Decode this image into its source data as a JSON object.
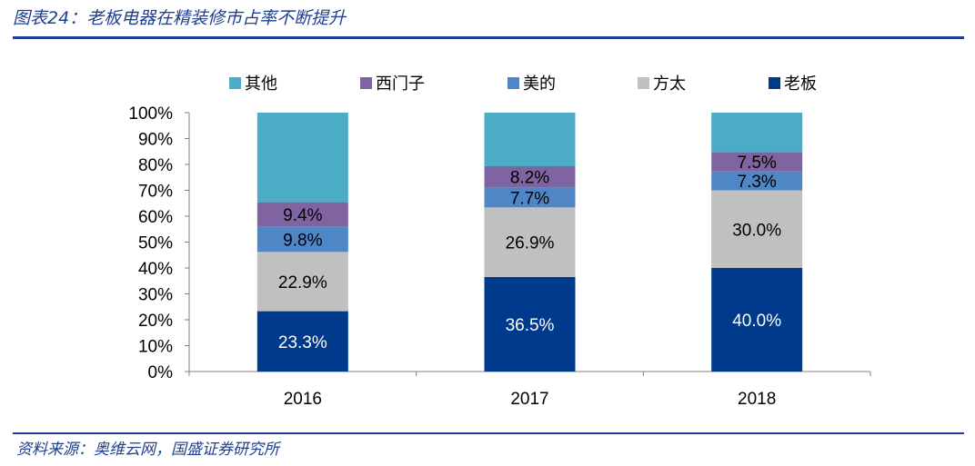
{
  "header": {
    "title": "图表24：老板电器在精装修市占率不断提升"
  },
  "footer": {
    "source": "资料来源：奥维云网，国盛证券研究所"
  },
  "chart_data": {
    "type": "bar",
    "stacked": true,
    "percent_stacked": true,
    "title": "",
    "xlabel": "",
    "ylabel": "",
    "categories": [
      "2016",
      "2017",
      "2018"
    ],
    "ylim": [
      0,
      100
    ],
    "yticks": [
      "0%",
      "10%",
      "20%",
      "30%",
      "40%",
      "50%",
      "60%",
      "70%",
      "80%",
      "90%",
      "100%"
    ],
    "legend_position": "top",
    "series": [
      {
        "name": "老板",
        "color": "#003a8c",
        "label_color": "#ffffff",
        "values": [
          23.3,
          36.5,
          40.0
        ],
        "labels": [
          "23.3%",
          "36.5%",
          "40.0%"
        ]
      },
      {
        "name": "方太",
        "color": "#c0c0c0",
        "label_color": "#000000",
        "values": [
          22.9,
          26.9,
          30.0
        ],
        "labels": [
          "22.9%",
          "26.9%",
          "30.0%"
        ]
      },
      {
        "name": "美的",
        "color": "#4f86c6",
        "label_color": "#000000",
        "values": [
          9.8,
          7.7,
          7.3
        ],
        "labels": [
          "9.8%",
          "7.7%",
          "7.3%"
        ]
      },
      {
        "name": "西门子",
        "color": "#8064a2",
        "label_color": "#000000",
        "values": [
          9.4,
          8.2,
          7.5
        ],
        "labels": [
          "9.4%",
          "8.2%",
          "7.5%"
        ]
      },
      {
        "name": "其他",
        "color": "#4bacc6",
        "label_color": "#000000",
        "values": [
          34.6,
          20.7,
          15.2
        ],
        "labels": [
          "",
          "",
          ""
        ]
      }
    ],
    "legend_order": [
      "其他",
      "西门子",
      "美的",
      "方太",
      "老板"
    ]
  }
}
